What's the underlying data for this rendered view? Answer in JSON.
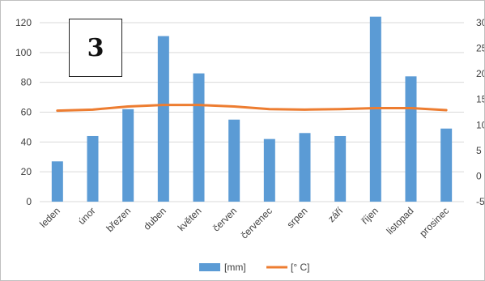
{
  "figure_label": "3",
  "chart_data": {
    "type": "bar",
    "categories": [
      "leden",
      "únor",
      "březen",
      "duben",
      "květen",
      "červen",
      "červenec",
      "srpen",
      "září",
      "říjen",
      "listopad",
      "prosinec"
    ],
    "series": [
      {
        "name": "[mm]",
        "type": "bar",
        "axis": "left",
        "color": "#5b9bd5",
        "values": [
          27,
          44,
          62,
          111,
          86,
          55,
          42,
          46,
          44,
          124,
          84,
          49
        ]
      },
      {
        "name": "[° C]",
        "type": "line",
        "axis": "right",
        "color": "#ed7d31",
        "values": [
          12.8,
          13.0,
          13.6,
          13.9,
          13.9,
          13.6,
          13.1,
          13.0,
          13.1,
          13.3,
          13.3,
          12.9
        ]
      }
    ],
    "y_left": {
      "min": 0,
      "max": 120,
      "ticks": [
        0,
        20,
        40,
        60,
        80,
        100,
        120
      ]
    },
    "y_right": {
      "min": -5,
      "max": 30,
      "ticks": [
        -5,
        0,
        5,
        10,
        15,
        20,
        25,
        30
      ]
    },
    "grid": true,
    "legend": "bottom"
  }
}
